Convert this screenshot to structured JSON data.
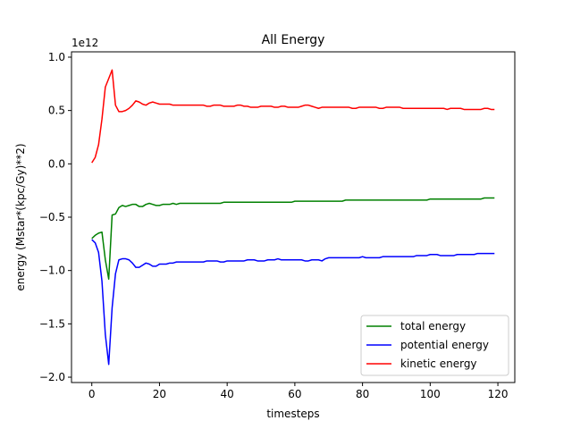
{
  "chart_data": {
    "type": "line",
    "title": "All Energy",
    "xlabel": "timesteps",
    "ylabel": "energy (Mstar*(kpc/Gy)**2)",
    "offset_text": "1e12",
    "xlim": [
      -6,
      125
    ],
    "ylim": [
      -2.05,
      1.05
    ],
    "xticks": [
      0,
      20,
      40,
      60,
      80,
      100,
      120
    ],
    "xtick_labels": [
      "0",
      "20",
      "40",
      "60",
      "80",
      "100",
      "120"
    ],
    "yticks": [
      -2.0,
      -1.5,
      -1.0,
      -0.5,
      0.0,
      0.5,
      1.0
    ],
    "ytick_labels": [
      "−2.0",
      "−1.5",
      "−1.0",
      "−0.5",
      "0.0",
      "0.5",
      "1.0"
    ],
    "grid": false,
    "legend_position": "lower right",
    "x": [
      0,
      1,
      2,
      3,
      4,
      5,
      6,
      7,
      8,
      9,
      10,
      11,
      12,
      13,
      14,
      15,
      16,
      17,
      18,
      19,
      20,
      21,
      22,
      23,
      24,
      25,
      26,
      27,
      28,
      29,
      30,
      31,
      32,
      33,
      34,
      35,
      36,
      37,
      38,
      39,
      40,
      41,
      42,
      43,
      44,
      45,
      46,
      47,
      48,
      49,
      50,
      51,
      52,
      53,
      54,
      55,
      56,
      57,
      58,
      59,
      60,
      61,
      62,
      63,
      64,
      65,
      66,
      67,
      68,
      69,
      70,
      71,
      72,
      73,
      74,
      75,
      76,
      77,
      78,
      79,
      80,
      81,
      82,
      83,
      84,
      85,
      86,
      87,
      88,
      89,
      90,
      91,
      92,
      93,
      94,
      95,
      96,
      97,
      98,
      99,
      100,
      101,
      102,
      103,
      104,
      105,
      106,
      107,
      108,
      109,
      110,
      111,
      112,
      113,
      114,
      115,
      116,
      117,
      118,
      119
    ],
    "series": [
      {
        "name": "total energy",
        "color": "#008000",
        "values": [
          -0.7,
          -0.67,
          -0.65,
          -0.64,
          -0.9,
          -1.08,
          -0.48,
          -0.47,
          -0.41,
          -0.39,
          -0.4,
          -0.39,
          -0.38,
          -0.38,
          -0.4,
          -0.4,
          -0.38,
          -0.37,
          -0.38,
          -0.39,
          -0.39,
          -0.38,
          -0.38,
          -0.38,
          -0.37,
          -0.38,
          -0.37,
          -0.37,
          -0.37,
          -0.37,
          -0.37,
          -0.37,
          -0.37,
          -0.37,
          -0.37,
          -0.37,
          -0.37,
          -0.37,
          -0.37,
          -0.36,
          -0.36,
          -0.36,
          -0.36,
          -0.36,
          -0.36,
          -0.36,
          -0.36,
          -0.36,
          -0.36,
          -0.36,
          -0.36,
          -0.36,
          -0.36,
          -0.36,
          -0.36,
          -0.36,
          -0.36,
          -0.36,
          -0.36,
          -0.36,
          -0.35,
          -0.35,
          -0.35,
          -0.35,
          -0.35,
          -0.35,
          -0.35,
          -0.35,
          -0.35,
          -0.35,
          -0.35,
          -0.35,
          -0.35,
          -0.35,
          -0.35,
          -0.34,
          -0.34,
          -0.34,
          -0.34,
          -0.34,
          -0.34,
          -0.34,
          -0.34,
          -0.34,
          -0.34,
          -0.34,
          -0.34,
          -0.34,
          -0.34,
          -0.34,
          -0.34,
          -0.34,
          -0.34,
          -0.34,
          -0.34,
          -0.34,
          -0.34,
          -0.34,
          -0.34,
          -0.34,
          -0.33,
          -0.33,
          -0.33,
          -0.33,
          -0.33,
          -0.33,
          -0.33,
          -0.33,
          -0.33,
          -0.33,
          -0.33,
          -0.33,
          -0.33,
          -0.33,
          -0.33,
          -0.33,
          -0.32,
          -0.32,
          -0.32,
          -0.32
        ]
      },
      {
        "name": "potential energy",
        "color": "#0000ff",
        "values": [
          -0.71,
          -0.74,
          -0.83,
          -1.1,
          -1.6,
          -1.88,
          -1.35,
          -1.03,
          -0.9,
          -0.89,
          -0.89,
          -0.9,
          -0.93,
          -0.97,
          -0.97,
          -0.95,
          -0.93,
          -0.94,
          -0.96,
          -0.96,
          -0.94,
          -0.94,
          -0.94,
          -0.93,
          -0.93,
          -0.92,
          -0.92,
          -0.92,
          -0.92,
          -0.92,
          -0.92,
          -0.92,
          -0.92,
          -0.92,
          -0.91,
          -0.91,
          -0.91,
          -0.91,
          -0.92,
          -0.92,
          -0.91,
          -0.91,
          -0.91,
          -0.91,
          -0.91,
          -0.91,
          -0.9,
          -0.9,
          -0.9,
          -0.91,
          -0.91,
          -0.91,
          -0.9,
          -0.9,
          -0.9,
          -0.89,
          -0.9,
          -0.9,
          -0.9,
          -0.9,
          -0.9,
          -0.9,
          -0.9,
          -0.91,
          -0.91,
          -0.9,
          -0.9,
          -0.9,
          -0.91,
          -0.89,
          -0.88,
          -0.88,
          -0.88,
          -0.88,
          -0.88,
          -0.88,
          -0.88,
          -0.88,
          -0.88,
          -0.88,
          -0.87,
          -0.88,
          -0.88,
          -0.88,
          -0.88,
          -0.88,
          -0.87,
          -0.87,
          -0.87,
          -0.87,
          -0.87,
          -0.87,
          -0.87,
          -0.87,
          -0.87,
          -0.87,
          -0.86,
          -0.86,
          -0.86,
          -0.86,
          -0.85,
          -0.85,
          -0.85,
          -0.86,
          -0.86,
          -0.86,
          -0.86,
          -0.86,
          -0.85,
          -0.85,
          -0.85,
          -0.85,
          -0.85,
          -0.85,
          -0.84,
          -0.84,
          -0.84,
          -0.84,
          -0.84,
          -0.84
        ]
      },
      {
        "name": "kinetic energy",
        "color": "#ff0000",
        "values": [
          0.01,
          0.06,
          0.18,
          0.42,
          0.72,
          0.8,
          0.88,
          0.55,
          0.49,
          0.49,
          0.5,
          0.52,
          0.55,
          0.59,
          0.58,
          0.56,
          0.55,
          0.57,
          0.58,
          0.57,
          0.56,
          0.56,
          0.56,
          0.56,
          0.55,
          0.55,
          0.55,
          0.55,
          0.55,
          0.55,
          0.55,
          0.55,
          0.55,
          0.55,
          0.54,
          0.54,
          0.55,
          0.55,
          0.55,
          0.54,
          0.54,
          0.54,
          0.54,
          0.55,
          0.55,
          0.54,
          0.54,
          0.53,
          0.53,
          0.53,
          0.54,
          0.54,
          0.54,
          0.54,
          0.53,
          0.53,
          0.54,
          0.54,
          0.53,
          0.53,
          0.53,
          0.53,
          0.54,
          0.55,
          0.55,
          0.54,
          0.53,
          0.52,
          0.53,
          0.53,
          0.53,
          0.53,
          0.53,
          0.53,
          0.53,
          0.53,
          0.53,
          0.52,
          0.52,
          0.53,
          0.53,
          0.53,
          0.53,
          0.53,
          0.53,
          0.52,
          0.52,
          0.53,
          0.53,
          0.53,
          0.53,
          0.53,
          0.52,
          0.52,
          0.52,
          0.52,
          0.52,
          0.52,
          0.52,
          0.52,
          0.52,
          0.52,
          0.52,
          0.52,
          0.52,
          0.51,
          0.52,
          0.52,
          0.52,
          0.52,
          0.51,
          0.51,
          0.51,
          0.51,
          0.51,
          0.51,
          0.52,
          0.52,
          0.51,
          0.51
        ]
      }
    ]
  }
}
